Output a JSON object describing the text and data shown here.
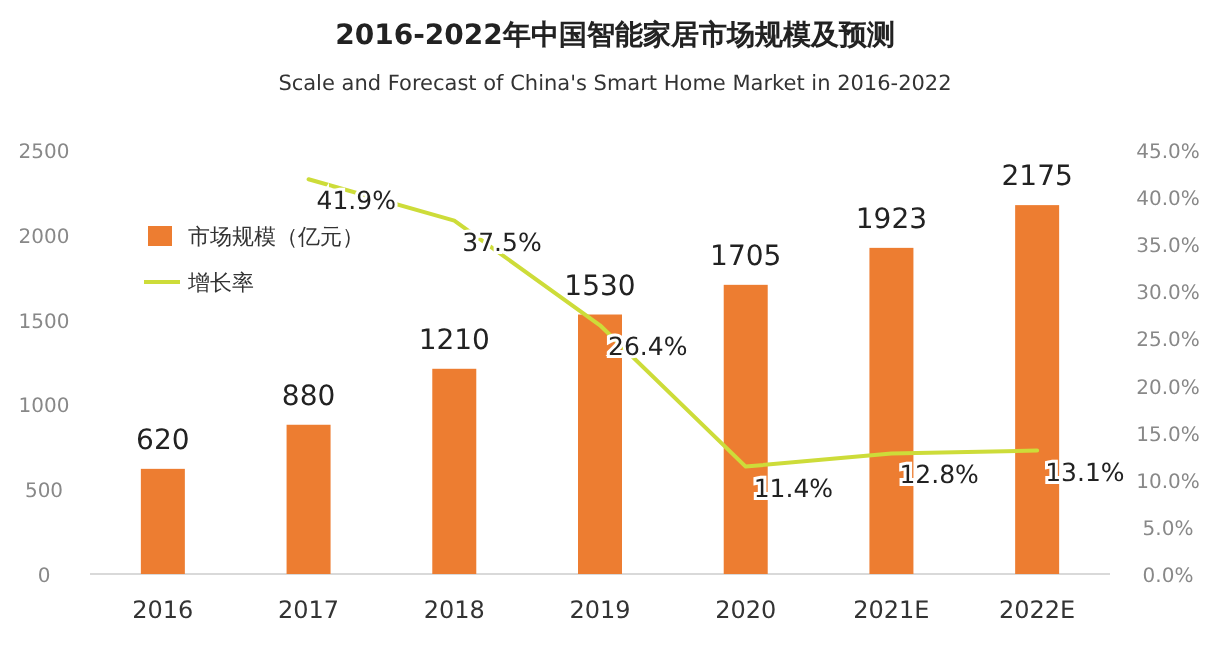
{
  "chart_data": {
    "type": "bar",
    "title": "2016-2022年中国智能家居市场规模及预测",
    "subtitle": "Scale and Forecast of China's Smart Home Market in 2016-2022",
    "categories": [
      "2016",
      "2017",
      "2018",
      "2019",
      "2020",
      "2021E",
      "2022E"
    ],
    "series": [
      {
        "name": "市场规模（亿元）",
        "color": "#ed7d31",
        "values": [
          620,
          880,
          1210,
          1530,
          1705,
          1923,
          2175
        ]
      },
      {
        "name": "增长率",
        "type": "line",
        "axis": "y2",
        "color": "#cddc39",
        "values": [
          null,
          41.9,
          37.5,
          26.4,
          11.4,
          12.8,
          13.1
        ],
        "value_labels": [
          null,
          "41.9%",
          "37.5%",
          "26.4%",
          "11.4%",
          "12.8%",
          "13.1%"
        ]
      }
    ],
    "ylim": [
      0,
      2500
    ],
    "yticks": [
      0,
      500,
      1000,
      1500,
      2000,
      2500
    ],
    "y2lim": [
      0,
      45
    ],
    "y2ticks": [
      {
        "value": 0,
        "label": "0.0%"
      },
      {
        "value": 5,
        "label": "5.0%"
      },
      {
        "value": 10,
        "label": "10.0%"
      },
      {
        "value": 15,
        "label": "15.0%"
      },
      {
        "value": 20,
        "label": "20.0%"
      },
      {
        "value": 25,
        "label": "25.0%"
      },
      {
        "value": 30,
        "label": "30.0%"
      },
      {
        "value": 35,
        "label": "35.0%"
      },
      {
        "value": 40,
        "label": "40.0%"
      },
      {
        "value": 45,
        "label": "45.0%"
      }
    ],
    "data_labels": true,
    "legend": "top left",
    "grid": false
  }
}
